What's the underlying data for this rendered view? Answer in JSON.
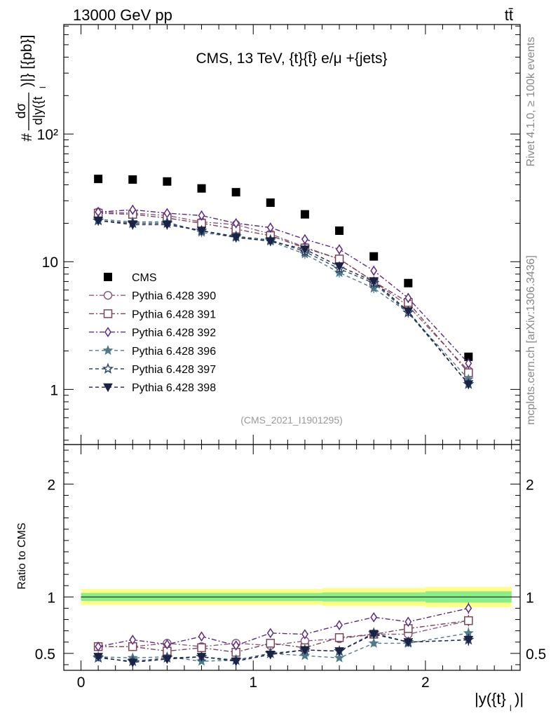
{
  "header": {
    "beam": "13000 GeV pp",
    "process": "tt̄"
  },
  "side_labels": {
    "rivet": "Rivet 4.1.0, ≥ 100k events",
    "source": "mcplots.cern.ch [arXiv:1306.3436]"
  },
  "chart_data": [
    {
      "type": "line",
      "panel": "main",
      "title": "CMS, 13 TeV, {t}{t̄} e/μ +{jets}",
      "analysis_id": "(CMS_2021_I1901295)",
      "ylabel": "#dσ/d|y({t}_l)|} [{pb}]",
      "ylabel_parts": {
        "prefix": "#",
        "numerator": "dσ",
        "denominator": "d|y({t",
        "sub": "l",
        "suffix": ")|} [{pb}]"
      },
      "xlabel": "|y({t}_l)|",
      "xlabel_parts": {
        "main": "|y({t}",
        "sub": "l",
        "suffix": ")|"
      },
      "yscale": "log",
      "xlim": [
        -0.1,
        2.55
      ],
      "ylim": [
        0.37,
        720
      ],
      "ytick_labels": [
        "1",
        "10",
        "10²"
      ],
      "xtick_labels": [
        "0",
        "1",
        "2"
      ],
      "legend_position": "middle-left",
      "x": [
        0.1,
        0.3,
        0.5,
        0.7,
        0.9,
        1.1,
        1.3,
        1.5,
        1.7,
        1.9,
        2.25
      ],
      "series": [
        {
          "name": "CMS",
          "color": "#000000",
          "marker": "filled-square",
          "line": "none",
          "values": [
            44.5,
            44.0,
            42.5,
            37.5,
            35.0,
            29.0,
            23.5,
            17.5,
            11.0,
            6.8,
            1.8
          ]
        },
        {
          "name": "Pythia 6.428 390",
          "color": "#8a5a83",
          "marker": "open-circle",
          "line": "dash-dot",
          "values": [
            24.5,
            24.0,
            23.0,
            20.5,
            19.5,
            16.5,
            13.0,
            10.5,
            7.0,
            4.5,
            1.4
          ]
        },
        {
          "name": "Pythia 6.428 391",
          "color": "#7a4557",
          "marker": "open-square",
          "line": "dash-dot",
          "values": [
            24.0,
            23.5,
            22.0,
            20.0,
            18.0,
            16.0,
            12.8,
            10.5,
            7.0,
            4.8,
            1.35
          ]
        },
        {
          "name": "Pythia 6.428 392",
          "color": "#5b2a86",
          "marker": "open-diamond",
          "line": "dash-dot",
          "values": [
            24.5,
            25.5,
            24.0,
            23.0,
            20.0,
            18.5,
            15.0,
            12.5,
            8.5,
            5.2,
            1.6
          ]
        },
        {
          "name": "Pythia 6.428 396",
          "color": "#4f7a8a",
          "marker": "filled-star",
          "line": "dashed",
          "values": [
            21.5,
            20.5,
            20.5,
            17.0,
            15.5,
            14.5,
            11.5,
            8.2,
            6.2,
            4.0,
            1.2
          ]
        },
        {
          "name": "Pythia 6.428 397",
          "color": "#2c4a6e",
          "marker": "open-star",
          "line": "dashed",
          "values": [
            21.0,
            20.0,
            20.0,
            17.5,
            15.8,
            14.8,
            12.0,
            8.8,
            6.8,
            4.0,
            1.1
          ]
        },
        {
          "name": "Pythia 6.428 398",
          "color": "#1a2345",
          "marker": "filled-triangle-down",
          "line": "dashed",
          "values": [
            21.0,
            19.5,
            19.5,
            17.5,
            15.5,
            14.5,
            12.5,
            9.2,
            7.0,
            4.1,
            1.1
          ]
        }
      ]
    },
    {
      "type": "line",
      "panel": "ratio",
      "ylabel": "Ratio to CMS",
      "ylim": [
        0.35,
        2.35
      ],
      "ytick_labels": [
        "0.5",
        "1",
        "2"
      ],
      "x": [
        0.1,
        0.3,
        0.5,
        0.7,
        0.9,
        1.1,
        1.3,
        1.5,
        1.7,
        1.9,
        2.25
      ],
      "bands": [
        {
          "name": "CMS total uncertainty",
          "color": "#ffff88",
          "edges": [
            0.0,
            1.4,
            2.0,
            2.5
          ],
          "halfwidth": [
            0.07,
            0.08,
            0.09
          ]
        },
        {
          "name": "CMS statistical uncertainty",
          "color": "#88ee88",
          "edges": [
            0.0,
            1.4,
            2.0,
            2.5
          ],
          "halfwidth": [
            0.035,
            0.04,
            0.05
          ]
        }
      ],
      "series": [
        {
          "name": "Pythia 6.428 390",
          "color": "#8a5a83",
          "marker": "open-circle",
          "line": "dash-dot",
          "values": [
            0.56,
            0.56,
            0.59,
            0.56,
            0.59,
            0.57,
            0.61,
            0.63,
            0.67,
            0.67,
            0.79
          ],
          "err": [
            0.02,
            0.02,
            0.02,
            0.02,
            0.02,
            0.02,
            0.02,
            0.02,
            0.03,
            0.03,
            0.05
          ]
        },
        {
          "name": "Pythia 6.428 391",
          "color": "#7a4557",
          "marker": "open-square",
          "line": "dash-dot",
          "values": [
            0.56,
            0.56,
            0.52,
            0.55,
            0.51,
            0.59,
            0.55,
            0.64,
            0.67,
            0.72,
            0.79
          ],
          "err": [
            0.02,
            0.02,
            0.02,
            0.02,
            0.02,
            0.02,
            0.02,
            0.02,
            0.03,
            0.03,
            0.05
          ]
        },
        {
          "name": "Pythia 6.428 392",
          "color": "#5b2a86",
          "marker": "open-diamond",
          "line": "dash-dot",
          "values": [
            0.56,
            0.62,
            0.58,
            0.65,
            0.57,
            0.68,
            0.67,
            0.75,
            0.82,
            0.78,
            0.9
          ],
          "err": [
            0.02,
            0.02,
            0.02,
            0.02,
            0.02,
            0.03,
            0.03,
            0.03,
            0.04,
            0.04,
            0.05
          ]
        },
        {
          "name": "Pythia 6.428 396",
          "color": "#4f7a8a",
          "marker": "filled-star",
          "line": "dashed",
          "values": [
            0.47,
            0.46,
            0.47,
            0.43,
            0.44,
            0.5,
            0.48,
            0.46,
            0.59,
            0.59,
            0.68
          ],
          "err": [
            0.02,
            0.02,
            0.02,
            0.02,
            0.02,
            0.02,
            0.02,
            0.02,
            0.03,
            0.03,
            0.05
          ]
        },
        {
          "name": "Pythia 6.428 397",
          "color": "#2c4a6e",
          "marker": "open-star",
          "line": "dashed",
          "values": [
            0.46,
            0.43,
            0.46,
            0.47,
            0.44,
            0.5,
            0.53,
            0.52,
            0.68,
            0.6,
            0.62
          ],
          "err": [
            0.02,
            0.02,
            0.02,
            0.02,
            0.02,
            0.02,
            0.02,
            0.03,
            0.04,
            0.04,
            0.05
          ]
        },
        {
          "name": "Pythia 6.428 398",
          "color": "#1a2345",
          "marker": "filled-triangle-down",
          "line": "dashed",
          "values": [
            0.47,
            0.42,
            0.45,
            0.47,
            0.43,
            0.49,
            0.53,
            0.52,
            0.67,
            0.6,
            0.62
          ],
          "err": [
            0.02,
            0.02,
            0.02,
            0.02,
            0.02,
            0.02,
            0.02,
            0.03,
            0.04,
            0.04,
            0.05
          ]
        }
      ]
    }
  ]
}
